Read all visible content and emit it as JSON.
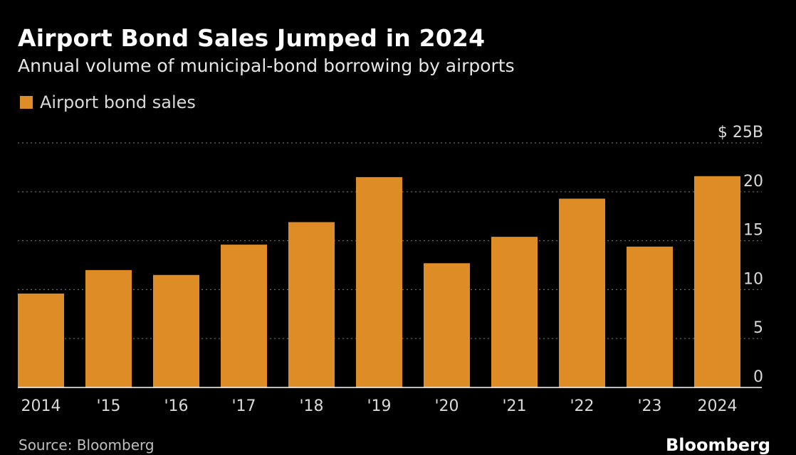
{
  "colors": {
    "background": "#000000",
    "bar": "#DD8C26",
    "grid": "#6b6b6b",
    "axis": "#ffffff",
    "tick_text": "#d9d9d9"
  },
  "chart_data": {
    "type": "bar",
    "title": "Airport Bond Sales Jumped in 2024",
    "subtitle": "Annual volume of municipal-bond borrowing by airports",
    "categories": [
      "2014",
      "'15",
      "'16",
      "'17",
      "'18",
      "'19",
      "'20",
      "'21",
      "'22",
      "'23",
      "2024"
    ],
    "series": [
      {
        "name": "Airport bond sales",
        "values": [
          9.6,
          12.0,
          11.5,
          14.6,
          16.9,
          21.5,
          12.7,
          15.4,
          19.3,
          14.4,
          21.6
        ]
      }
    ],
    "ylim": [
      0,
      25
    ],
    "yticks": [
      0,
      5,
      10,
      15,
      20,
      25
    ],
    "ytick_labels": [
      "0",
      "5",
      "10",
      "15",
      "20",
      "$ 25B"
    ],
    "xlabel": "",
    "ylabel": "",
    "grid": true,
    "legend_position": "top-left",
    "y_axis_side": "right"
  },
  "footer": {
    "source": "Source: Bloomberg",
    "brand": "Bloomberg"
  }
}
